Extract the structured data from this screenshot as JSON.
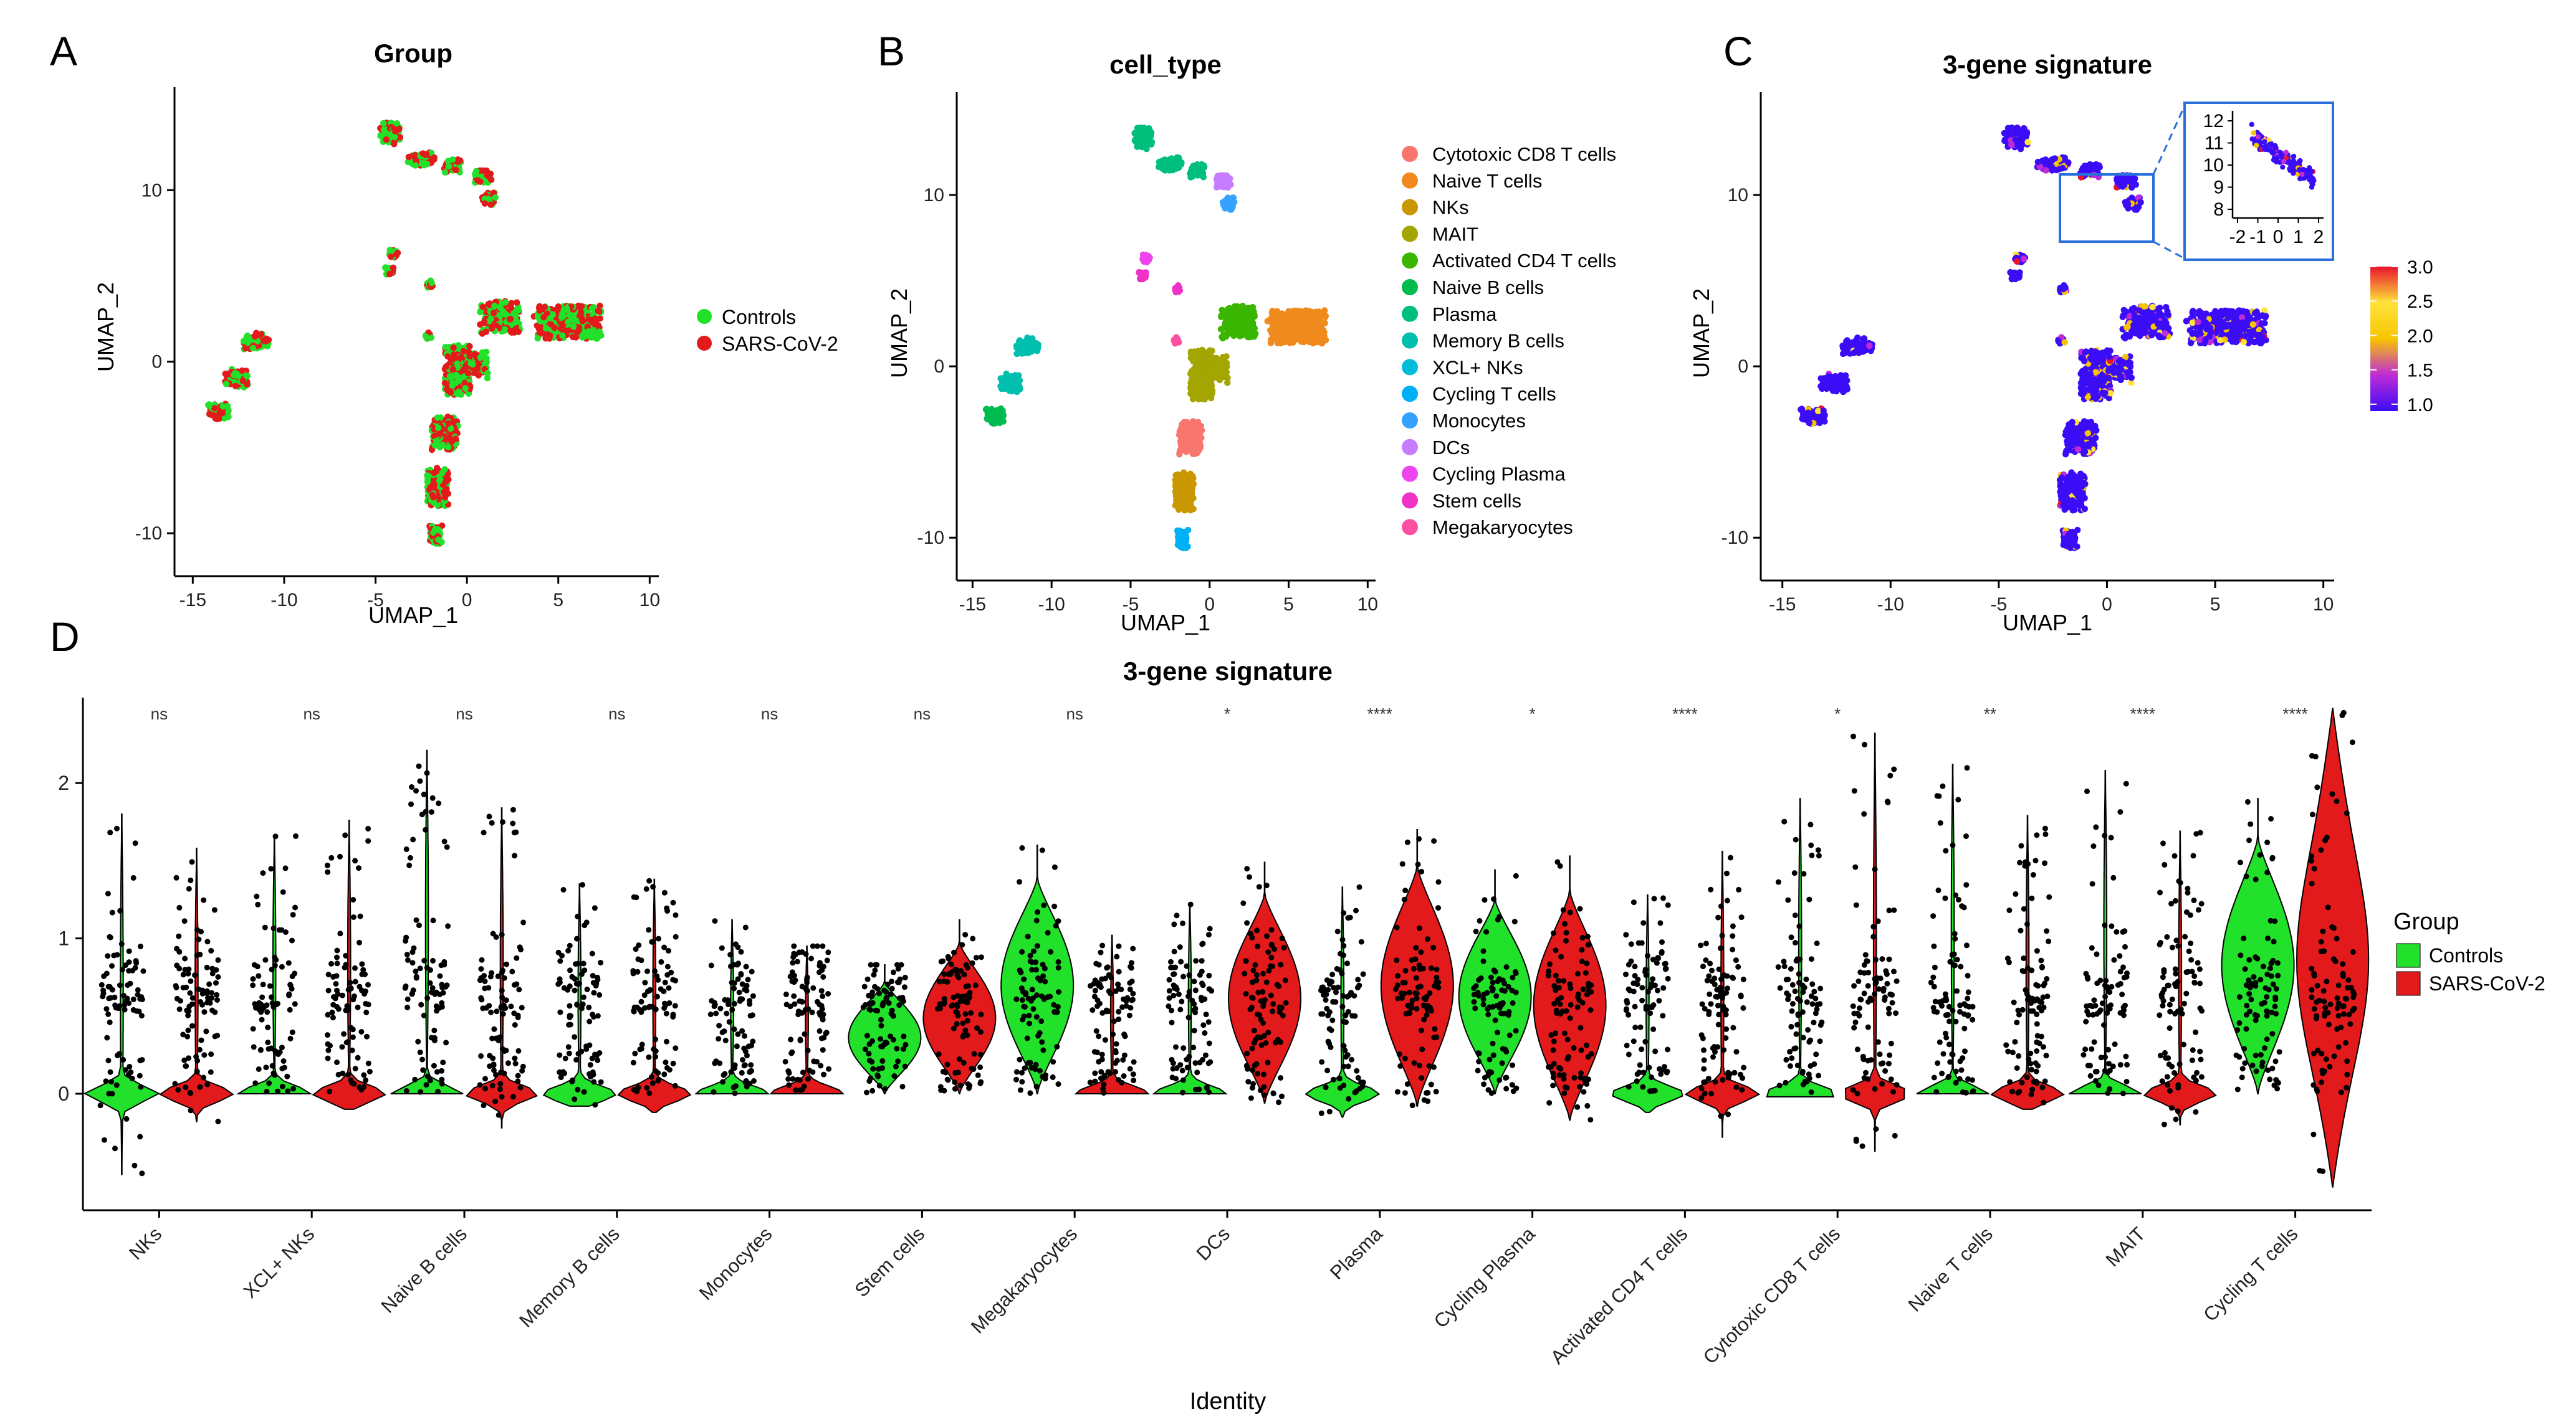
{
  "panel_labels": [
    "A",
    "B",
    "C",
    "D"
  ],
  "chart_data": [
    {
      "type": "scatter",
      "panel": "A",
      "title": "Group",
      "xlabel": "UMAP_1",
      "ylabel": "UMAP_2",
      "xlim": [
        -16,
        10.5
      ],
      "ylim": [
        -12.5,
        16
      ],
      "xticks": [
        "-15",
        "-10",
        "-5",
        "0",
        "5",
        "10"
      ],
      "yticks": [
        "-10",
        "0",
        "10"
      ],
      "legend": [
        {
          "label": "Controls",
          "color": "#22e12a"
        },
        {
          "label": "SARS-CoV-2",
          "color": "#e31a1c"
        }
      ]
    },
    {
      "type": "scatter",
      "panel": "B",
      "title": "cell_type",
      "xlabel": "UMAP_1",
      "ylabel": "UMAP_2",
      "xlim": [
        -16,
        10.5
      ],
      "ylim": [
        -12.5,
        16
      ],
      "xticks": [
        "-15",
        "-10",
        "-5",
        "0",
        "5",
        "10"
      ],
      "yticks": [
        "-10",
        "0",
        "10"
      ],
      "legend": [
        {
          "label": "Cytotoxic CD8 T cells",
          "color": "#f8766d"
        },
        {
          "label": "Naive T cells",
          "color": "#f08a1c"
        },
        {
          "label": "NKs",
          "color": "#c99800"
        },
        {
          "label": "MAIT",
          "color": "#a3a500"
        },
        {
          "label": "Activated CD4 T cells",
          "color": "#39b600"
        },
        {
          "label": "Naive B cells",
          "color": "#00bb4e"
        },
        {
          "label": "Plasma",
          "color": "#00bf7d"
        },
        {
          "label": "Memory B cells",
          "color": "#00bfae"
        },
        {
          "label": "XCL+ NKs",
          "color": "#00bcd8"
        },
        {
          "label": "Cycling T cells",
          "color": "#00b0f6"
        },
        {
          "label": "Monocytes",
          "color": "#35a2ff"
        },
        {
          "label": "DCs",
          "color": "#c77cff"
        },
        {
          "label": "Cycling Plasma",
          "color": "#ee44ee"
        },
        {
          "label": "Stem cells",
          "color": "#f032c8"
        },
        {
          "label": "Megakaryocytes",
          "color": "#ff4fa0"
        }
      ]
    },
    {
      "type": "scatter",
      "panel": "C",
      "title": "3-gene signature",
      "xlabel": "UMAP_1",
      "ylabel": "UMAP_2",
      "xlim": [
        -16,
        10.5
      ],
      "ylim": [
        -12.5,
        16
      ],
      "xticks": [
        "-15",
        "-10",
        "-5",
        "0",
        "5",
        "10"
      ],
      "yticks": [
        "-10",
        "0",
        "10"
      ],
      "colorbar": {
        "range": [
          0.9,
          3.0
        ],
        "ticks": [
          "3.0",
          "2.5",
          "2.0",
          "1.5",
          "1.0"
        ],
        "colors": [
          "#3b0df7",
          "#c02bd6",
          "#f7c400",
          "#ffe33b",
          "#e8142b"
        ]
      },
      "inset": {
        "xticks": [
          "-2",
          "-1",
          "0",
          "1",
          "2"
        ],
        "yticks": [
          "12",
          "11",
          "10",
          "9",
          "8"
        ]
      }
    },
    {
      "type": "violin",
      "panel": "D",
      "title": "3-gene signature",
      "xlabel": "Identity",
      "ylabel": "",
      "ylim": [
        -0.75,
        2.55
      ],
      "yticks": [
        "0",
        "1",
        "2"
      ],
      "legend_title": "Group",
      "series": [
        {
          "name": "Controls",
          "color": "#22e12a"
        },
        {
          "name": "SARS-CoV-2",
          "color": "#e31a1c"
        }
      ],
      "categories": [
        "NKs",
        "XCL+ NKs",
        "Naive B cells",
        "Memory B cells",
        "Monocytes",
        "Stem cells",
        "Megakaryocytes",
        "DCs",
        "Plasma",
        "Cycling Plasma",
        "Activated CD4 T cells",
        "Cytotoxic CD8 T cells",
        "Naive T cells",
        "MAIT",
        "Cycling T cells"
      ],
      "significance": [
        "ns",
        "ns",
        "ns",
        "ns",
        "ns",
        "ns",
        "ns",
        "*",
        "****",
        "*",
        "****",
        "*",
        "**",
        "****",
        "****"
      ],
      "controls_range": [
        [
          -0.52,
          1.8
        ],
        [
          0.0,
          1.66
        ],
        [
          0.0,
          2.21
        ],
        [
          -0.08,
          1.35
        ],
        [
          0.0,
          1.12
        ],
        [
          0.0,
          0.83
        ],
        [
          0.0,
          1.6
        ],
        [
          0.0,
          1.23
        ],
        [
          -0.15,
          1.33
        ],
        [
          0.0,
          1.44
        ],
        [
          -0.12,
          1.28
        ],
        [
          -0.02,
          1.9
        ],
        [
          0.0,
          2.12
        ],
        [
          0.0,
          2.08
        ],
        [
          0.0,
          1.9
        ]
      ],
      "sars_range": [
        [
          -0.18,
          1.58
        ],
        [
          -0.1,
          1.76
        ],
        [
          -0.22,
          1.84
        ],
        [
          -0.12,
          1.38
        ],
        [
          0.0,
          0.95
        ],
        [
          0.0,
          1.12
        ],
        [
          0.0,
          1.02
        ],
        [
          -0.06,
          1.49
        ],
        [
          -0.08,
          1.7
        ],
        [
          -0.17,
          1.53
        ],
        [
          -0.28,
          1.56
        ],
        [
          -0.37,
          2.32
        ],
        [
          -0.1,
          1.79
        ],
        [
          -0.2,
          1.69
        ],
        [
          -0.6,
          2.48
        ]
      ]
    }
  ]
}
